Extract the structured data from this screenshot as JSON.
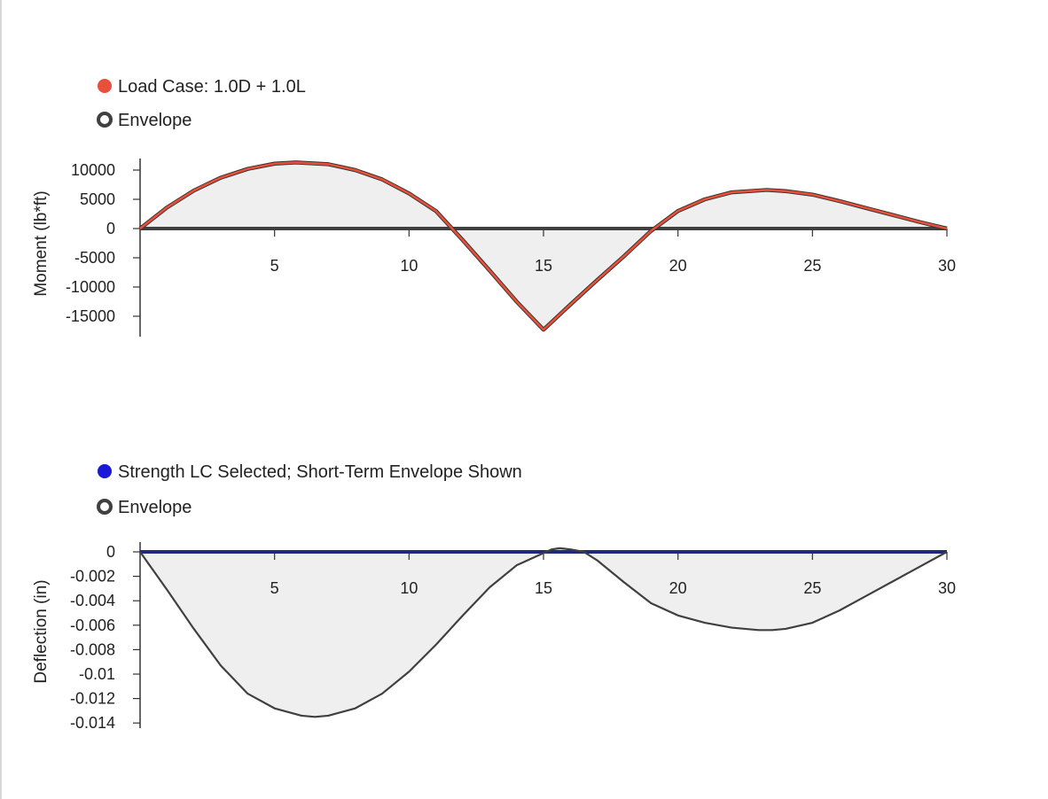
{
  "chart_data": [
    {
      "type": "area",
      "ylabel": "Moment (lb*ft)",
      "xlabel": "",
      "xlim": [
        0,
        30
      ],
      "ylim": [
        -18000,
        12000
      ],
      "x_ticks": [
        5,
        10,
        15,
        20,
        25,
        30
      ],
      "y_ticks": [
        10000,
        5000,
        0,
        -5000,
        -10000,
        -15000
      ],
      "legend": [
        {
          "label": "Load Case: 1.0D + 1.0L",
          "color": "#e8503a",
          "marker": "filled"
        },
        {
          "label": "Envelope",
          "color": "#404040",
          "marker": "ring"
        }
      ],
      "series": [
        {
          "name": "Load Case: 1.0D + 1.0L",
          "color": "#e8503a",
          "x": [
            0,
            1,
            2,
            3,
            4,
            5,
            5.8,
            7,
            8,
            9,
            10,
            11,
            11.6,
            12,
            13,
            14,
            15,
            16,
            17,
            18,
            19,
            20,
            21,
            22,
            23.3,
            24,
            25,
            26,
            27,
            28,
            29,
            30
          ],
          "y": [
            0,
            3600,
            6500,
            8700,
            10200,
            11100,
            11300,
            11000,
            10000,
            8400,
            6000,
            3000,
            0,
            -2000,
            -7200,
            -12500,
            -17300,
            -13000,
            -8800,
            -4700,
            -400,
            3000,
            5000,
            6200,
            6600,
            6400,
            5800,
            4700,
            3500,
            2300,
            1100,
            0
          ]
        },
        {
          "name": "Envelope",
          "color": "#404040",
          "x": [
            0,
            30
          ],
          "y": [
            0,
            0
          ]
        }
      ]
    },
    {
      "type": "area",
      "ylabel": "Deflection (in)",
      "xlabel": "",
      "xlim": [
        0,
        30
      ],
      "ylim": [
        -0.0145,
        0.0005
      ],
      "x_ticks": [
        5,
        10,
        15,
        20,
        25,
        30
      ],
      "y_ticks": [
        "0",
        "-0.002",
        "-0.004",
        "-0.006",
        "-0.008",
        "-0.01",
        "-0.012",
        "-0.014"
      ],
      "legend": [
        {
          "label": "Strength LC Selected; Short-Term Envelope Shown",
          "color": "#1a1ad6",
          "marker": "filled"
        },
        {
          "label": "Envelope",
          "color": "#404040",
          "marker": "ring"
        }
      ],
      "series": [
        {
          "name": "Strength LC Selected; Short-Term Envelope Shown",
          "color": "#1f2a7a",
          "x": [
            0,
            30
          ],
          "y": [
            0,
            0
          ]
        },
        {
          "name": "Envelope",
          "color": "#404040",
          "x": [
            0,
            1,
            2,
            3,
            4,
            5,
            6,
            6.5,
            7,
            8,
            9,
            10,
            11,
            12,
            13,
            14,
            15,
            15.3,
            15.6,
            16,
            16.5,
            17,
            18,
            19,
            20,
            21,
            22,
            23,
            23.5,
            24,
            25,
            26,
            27,
            28,
            29,
            30
          ],
          "y": [
            0,
            -0.0031,
            -0.0063,
            -0.0093,
            -0.0116,
            -0.0128,
            -0.0134,
            -0.0135,
            -0.0134,
            -0.0128,
            -0.0116,
            -0.0098,
            -0.0076,
            -0.0052,
            -0.0029,
            -0.0011,
            -0.0001,
            0.0002,
            0.0003,
            0.0002,
            0.0,
            -0.0007,
            -0.0025,
            -0.0042,
            -0.0052,
            -0.0058,
            -0.0062,
            -0.0064,
            -0.0064,
            -0.0063,
            -0.0058,
            -0.0048,
            -0.0036,
            -0.0024,
            -0.0012,
            0
          ]
        }
      ]
    }
  ]
}
